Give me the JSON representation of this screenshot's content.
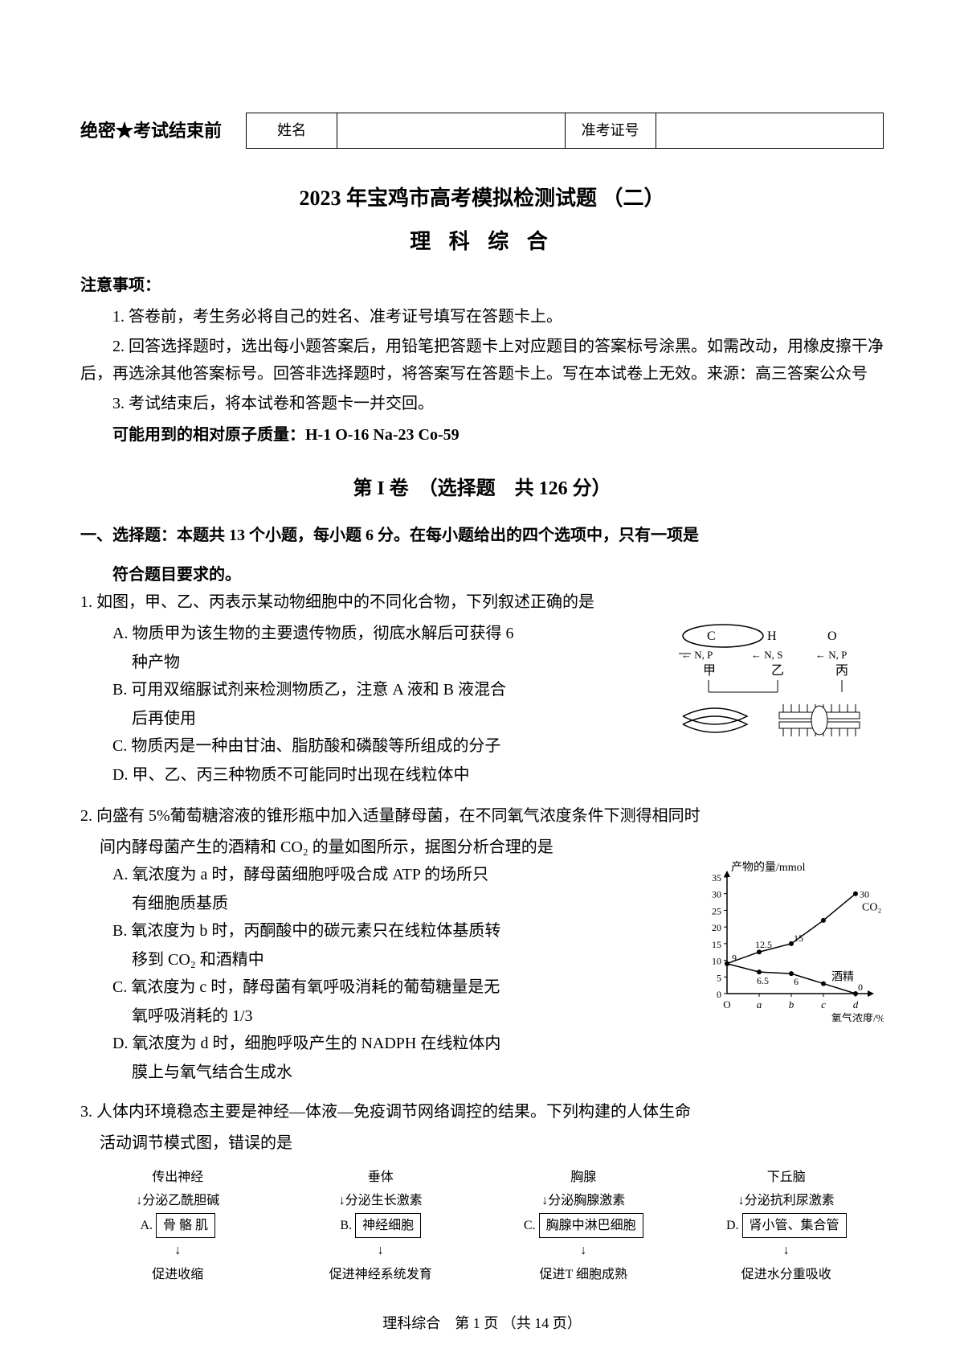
{
  "header": {
    "confidential": "绝密★考试结束前",
    "name_label": "姓名",
    "exam_id_label": "准考证号"
  },
  "title": {
    "main": "2023 年宝鸡市高考模拟检测试题 （二）",
    "sub": "理 科 综 合"
  },
  "notice": {
    "heading": "注意事项：",
    "item1": "1. 答卷前，考生务必将自己的姓名、准考证号填写在答题卡上。",
    "item2": "2. 回答选择题时，选出每小题答案后，用铅笔把答题卡上对应题目的答案标号涂黑。如需改动，用橡皮擦干净后，再选涂其他答案标号。回答非选择题时，将答案写在答题卡上。写在本试卷上无效。来源：高三答案公众号",
    "item3": "3. 考试结束后，将本试卷和答题卡一并交回。",
    "atomic": "可能用到的相对原子质量：H-1  O-16  Na-23  Co-59"
  },
  "section": {
    "title": "第 I 卷　（选择题　共 126 分）"
  },
  "instruction": {
    "line1": "一、选择题：本题共 13 个小题，每小题 6 分。在每小题给出的四个选项中，只有一项是",
    "line2": "符合题目要求的。"
  },
  "q1": {
    "stem": "1. 如图，甲、乙、丙表示某动物细胞中的不同化合物，下列叙述正确的是",
    "A1": "A. 物质甲为该生物的主要遗传物质，彻底水解后可获得 6",
    "A2": "种产物",
    "B1": "B. 可用双缩脲试剂来检测物质乙，注意 A 液和 B 液混合",
    "B2": "后再使用",
    "C": "C. 物质丙是一种由甘油、脂肪酸和磷酸等所组成的分子",
    "D": "D. 甲、乙、丙三种物质不可能同时出现在线粒体中",
    "diagram": {
      "top_labels": [
        "C",
        "H",
        "O"
      ],
      "np_labels": [
        "N, P",
        "N, S",
        "N, P"
      ],
      "bottom_labels": [
        "甲",
        "乙",
        "丙"
      ]
    }
  },
  "q2": {
    "stem1": "2. 向盛有 5%葡萄糖溶液的锥形瓶中加入适量酵母菌，在不同氧气浓度条件下测得相同时",
    "stem2": "间内酵母菌产生的酒精和 CO₂ 的量如图所示，据图分析合理的是",
    "A1": "A. 氧浓度为 a 时，酵母菌细胞呼吸合成 ATP 的场所只",
    "A2": "有细胞质基质",
    "B1": "B. 氧浓度为 b 时，丙酮酸中的碳元素只在线粒体基质转",
    "B2": "移到 CO₂ 和酒精中",
    "C1": "C. 氧浓度为 c 时，酵母菌有氧呼吸消耗的葡萄糖量是无",
    "C2": "氧呼吸消耗的 1/3",
    "D1": "D. 氧浓度为 d 时，细胞呼吸产生的 NADPH 在线粒体内",
    "D2": "膜上与氧气结合生成水",
    "chart": {
      "type": "line",
      "y_label": "产物的量/mmol",
      "x_label": "氧气浓度/%",
      "y_ticks": [
        0,
        5,
        10,
        15,
        20,
        25,
        30,
        35
      ],
      "x_ticks": [
        "O",
        "a",
        "b",
        "c",
        "d"
      ],
      "co2_label": "CO₂",
      "alcohol_label": "酒精",
      "co2_points": [
        [
          0,
          9
        ],
        [
          1,
          12.5
        ],
        [
          2,
          15
        ],
        [
          3,
          22
        ],
        [
          4,
          30
        ]
      ],
      "alcohol_points": [
        [
          0,
          9
        ],
        [
          1,
          6.5
        ],
        [
          2,
          6
        ],
        [
          3,
          3
        ],
        [
          4,
          0
        ]
      ],
      "point_labels": {
        "9": "9",
        "12.5": "12.5",
        "15": "15",
        "30": "30",
        "6.5": "6.5",
        "6": "6",
        "0": "0"
      },
      "line_color": "#000000",
      "background_color": "#ffffff"
    }
  },
  "q3": {
    "stem1": "3. 人体内环境稳态主要是神经—体液—免疫调节网络调控的结果。下列构建的人体生命",
    "stem2": "活动调节模式图，错误的是",
    "options": {
      "A": {
        "top": "传出神经",
        "secrete": "↓分泌乙酰胆碱",
        "box": "骨 骼 肌",
        "effect": "促进收缩"
      },
      "B": {
        "top": "垂体",
        "secrete": "↓分泌生长激素",
        "box": "神经细胞",
        "effect": "促进神经系统发育"
      },
      "C": {
        "top": "胸腺",
        "secrete": "↓分泌胸腺激素",
        "box": "胸腺中淋巴细胞",
        "effect": "促进T 细胞成熟"
      },
      "D": {
        "top": "下丘脑",
        "secrete": "↓分泌抗利尿激素",
        "box": "肾小管、集合管",
        "effect": "促进水分重吸收"
      }
    }
  },
  "footer": "理科综合　第 1 页 （共 14 页）"
}
